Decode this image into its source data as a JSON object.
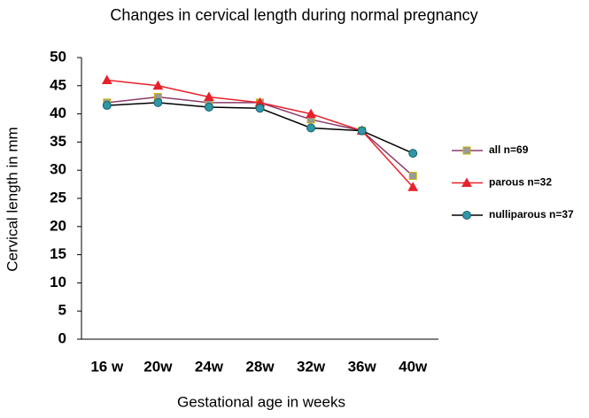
{
  "chart_data": {
    "type": "line",
    "title": "Changes in cervical length during normal pregnancy",
    "x_label": "Gestational age in weeks",
    "y_label": "Cervical length in mm",
    "categories": [
      "16 w",
      "20w",
      "24w",
      "28w",
      "32w",
      "36w",
      "40w"
    ],
    "ylim": [
      0,
      50
    ],
    "yticks": [
      0,
      5,
      10,
      15,
      20,
      25,
      30,
      35,
      40,
      45,
      50
    ],
    "series": [
      {
        "name": "all n=69",
        "color": "#8b3a6b",
        "marker": "square",
        "marker_color": "#999999",
        "values": [
          42,
          43,
          42,
          42,
          39,
          37,
          29
        ]
      },
      {
        "name": "parous n=32",
        "color": "#e8202a",
        "marker": "triangle",
        "marker_color": "#e8202a",
        "values": [
          46,
          45,
          43,
          42,
          40,
          37,
          27
        ]
      },
      {
        "name": "nulliparous n=37",
        "color": "#000000",
        "marker": "circle",
        "marker_color": "#2e97a8",
        "values": [
          41.5,
          42,
          41.2,
          41,
          37.5,
          37,
          33
        ]
      }
    ]
  }
}
